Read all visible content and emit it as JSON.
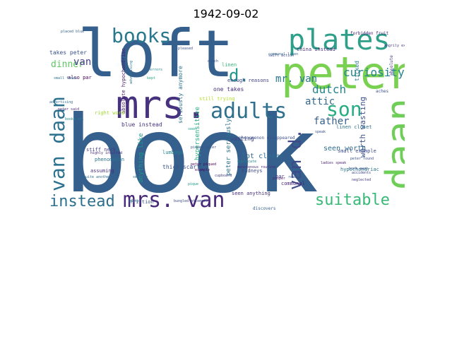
{
  "title": "1942-09-02",
  "words": [
    {
      "text": "book",
      "color": "#35608d",
      "weight": "big",
      "orient": "h"
    },
    {
      "text": "loft",
      "color": "#35608d",
      "weight": "big",
      "orient": "h"
    },
    {
      "text": "mrs.",
      "color": "#46327e",
      "weight": "large",
      "orient": "h"
    },
    {
      "text": "peter",
      "color": "#7ad151",
      "weight": "large",
      "orient": "h"
    },
    {
      "text": "daan",
      "color": "#6ece58",
      "weight": "large",
      "orient": "v"
    },
    {
      "text": "plates",
      "color": "#2e9f88",
      "weight": "medium",
      "orient": "h"
    },
    {
      "text": "adults",
      "color": "#2e6f8e",
      "weight": "medium",
      "orient": "h"
    },
    {
      "text": "books",
      "color": "#2a788e",
      "weight": "medium",
      "orient": "h"
    },
    {
      "text": "mrs. van",
      "color": "#482878",
      "weight": "medium",
      "orient": "h"
    },
    {
      "text": "van daan",
      "color": "#2c718e",
      "weight": "medium",
      "orient": "v"
    },
    {
      "text": "son",
      "color": "#26ad81",
      "weight": "medium",
      "orient": "h"
    },
    {
      "text": "van d.",
      "color": "#3e4989",
      "weight": "medium",
      "orient": "v"
    },
    {
      "text": "suitable",
      "color": "#38b977",
      "weight": "medium",
      "orient": "h"
    },
    {
      "text": "instead",
      "color": "#2d708e",
      "weight": "medium",
      "orient": "h"
    },
    {
      "text": "d.",
      "color": "#1f988b",
      "weight": "small",
      "orient": "h"
    },
    {
      "text": "mr. van",
      "color": "#2a788e",
      "weight": "small",
      "orient": "h"
    },
    {
      "text": "curiosity",
      "color": "#25848e",
      "weight": "small",
      "orient": "h"
    },
    {
      "text": "dinner",
      "color": "#5ec962",
      "weight": "small",
      "orient": "h"
    },
    {
      "text": "van",
      "color": "#433e85",
      "weight": "small",
      "orient": "h"
    },
    {
      "text": "dutch",
      "color": "#25858e",
      "weight": "small",
      "orient": "h"
    },
    {
      "text": "attic",
      "color": "#31688e",
      "weight": "small",
      "orient": "h"
    },
    {
      "text": "father",
      "color": "#355f8d",
      "weight": "small",
      "orient": "h"
    },
    {
      "text": "worth wasting",
      "color": "#3b528b",
      "weight": "tiny",
      "orient": "v"
    },
    {
      "text": "seen worth",
      "color": "#2f6c8e",
      "weight": "tiny",
      "orient": "h"
    },
    {
      "text": "lot closer",
      "color": "#2f6b8e",
      "weight": "tiny",
      "orient": "h"
    },
    {
      "text": "blue instead",
      "color": "#46337f",
      "weight": "tiny",
      "orient": "h"
    },
    {
      "text": "one takes",
      "color": "#472d7b",
      "weight": "tiny",
      "orient": "h"
    },
    {
      "text": "takes peter",
      "color": "#3b518b",
      "weight": "tiny",
      "orient": "h"
    },
    {
      "text": "also par",
      "color": "#440154",
      "weight": "tiny",
      "orient": "h"
    },
    {
      "text": "peter seriously",
      "color": "#2c728e",
      "weight": "tiny",
      "orient": "v"
    },
    {
      "text": "anything like",
      "color": "#1f968b",
      "weight": "tiny",
      "orient": "v"
    },
    {
      "text": "hypersensitive",
      "color": "#2ab07f",
      "weight": "tiny",
      "orient": "v"
    },
    {
      "text": "hypochondriac",
      "color": "#2a788e",
      "weight": "tiny",
      "orient": "h"
    },
    {
      "text": "small example",
      "color": "#3e4a89",
      "weight": "tiny",
      "orient": "h"
    },
    {
      "text": "wasting",
      "color": "#3f4788",
      "weight": "tiny",
      "orient": "h"
    },
    {
      "text": "still trying",
      "color": "#b5de2b",
      "weight": "tiny",
      "orient": "h"
    },
    {
      "text": "seen anything",
      "color": "#46307e",
      "weight": "tiny",
      "orient": "h"
    },
    {
      "text": "thick scarf",
      "color": "#3a538b",
      "weight": "tiny",
      "orient": "h"
    },
    {
      "text": "stiff neck",
      "color": "#433d84",
      "weight": "tiny",
      "orient": "h"
    },
    {
      "text": "phenomenon",
      "color": "#2c738e",
      "weight": "tiny",
      "orient": "h"
    },
    {
      "text": "assuming",
      "color": "#472f7d",
      "weight": "tiny",
      "orient": "h"
    },
    {
      "text": "lumbago",
      "color": "#25838e",
      "weight": "tiny",
      "orient": "h"
    },
    {
      "text": "friction",
      "color": "#3b528b",
      "weight": "tiny",
      "orient": "h"
    },
    {
      "text": "kidneys",
      "color": "#3f4889",
      "weight": "tiny",
      "orient": "h"
    },
    {
      "text": "linen closet",
      "color": "#2c728e",
      "weight": "tiny",
      "orient": "h"
    },
    {
      "text": "seriously anymore",
      "color": "#2c738e",
      "weight": "tiny",
      "orient": "v"
    },
    {
      "text": "enough reasons",
      "color": "#414287",
      "weight": "tiny",
      "orient": "h"
    },
    {
      "text": "china instead",
      "color": "#472c7a",
      "weight": "tiny",
      "orient": "h"
    },
    {
      "text": "absolute hypochondriac",
      "color": "#481b6d",
      "weight": "tiny",
      "orient": "v"
    },
    {
      "text": "right word",
      "color": "#a5db36",
      "weight": "tiny",
      "orient": "h"
    },
    {
      "text": "linen",
      "color": "#35b779",
      "weight": "tiny",
      "orient": "h"
    },
    {
      "text": "communal",
      "color": "#482475",
      "weight": "tiny",
      "orient": "h"
    },
    {
      "text": "par",
      "color": "#463480",
      "weight": "tiny",
      "orient": "h"
    },
    {
      "text": "discovers",
      "color": "#355e8d",
      "weight": "tiny",
      "orient": "h"
    },
    {
      "text": "phenomenon disappeared",
      "color": "#3d4d8a",
      "weight": "tiny",
      "orient": "h"
    },
    {
      "text": "ticked",
      "color": "#2a788e",
      "weight": "tiny",
      "orient": "v"
    },
    {
      "text": "aches",
      "color": "#3b518b",
      "weight": "tiny",
      "orient": "h"
    },
    {
      "text": "absolute",
      "color": "#453781",
      "weight": "tiny",
      "orient": "v"
    },
    {
      "text": "advertising",
      "color": "#2f6c8e",
      "weight": "micro",
      "orient": "h"
    },
    {
      "text": "forbidden fruit",
      "color": "#482677",
      "weight": "micro",
      "orient": "h"
    },
    {
      "text": "angrily exclaimed",
      "color": "#443983",
      "weight": "micro",
      "orient": "h"
    },
    {
      "text": "pleased",
      "color": "#3b518b",
      "weight": "micro",
      "orient": "h"
    },
    {
      "text": "placed blue",
      "color": "#34618d",
      "weight": "micro",
      "orient": "h"
    },
    {
      "text": "quite",
      "color": "#2d708e",
      "weight": "micro",
      "orient": "h"
    },
    {
      "text": "ladies speak",
      "color": "#481f70",
      "weight": "micro",
      "orient": "h"
    },
    {
      "text": "peter found",
      "color": "#3c4f8a",
      "weight": "micro",
      "orient": "h"
    },
    {
      "text": "book away",
      "color": "#3d4e8a",
      "weight": "micro",
      "orient": "h"
    },
    {
      "text": "duplicate",
      "color": "#25848e",
      "weight": "micro",
      "orient": "h"
    },
    {
      "text": "swift action",
      "color": "#3e4989",
      "weight": "micro",
      "orient": "h"
    },
    {
      "text": "proper",
      "color": "#482374",
      "weight": "micro",
      "orient": "h"
    },
    {
      "text": "communal linen",
      "color": "#33638d",
      "weight": "micro",
      "orient": "h"
    },
    {
      "text": "sad mr.",
      "color": "#2a778e",
      "weight": "micro",
      "orient": "h"
    },
    {
      "text": "dutch",
      "color": "#3a548c",
      "weight": "micro",
      "orient": "h"
    },
    {
      "text": "pique",
      "color": "#1e9b8a",
      "weight": "micro",
      "orient": "h"
    },
    {
      "text": "example",
      "color": "#46085c",
      "weight": "micro",
      "orient": "h"
    },
    {
      "text": "monotonous routine",
      "color": "#482979",
      "weight": "micro",
      "orient": "h"
    },
    {
      "text": "piqued peter",
      "color": "#3b528b",
      "weight": "micro",
      "orient": "h"
    },
    {
      "text": "peter piqued",
      "color": "#440154",
      "weight": "micro",
      "orient": "h"
    },
    {
      "text": "cupboard",
      "color": "#433e85",
      "weight": "micro",
      "orient": "h"
    },
    {
      "text": "go looking",
      "color": "#33628d",
      "weight": "micro",
      "orient": "h"
    },
    {
      "text": "quite another",
      "color": "#2f6c8e",
      "weight": "micro",
      "orient": "h"
    },
    {
      "text": "smartly",
      "color": "#2d708e",
      "weight": "micro",
      "orient": "h"
    },
    {
      "text": "reach",
      "color": "#365c8d",
      "weight": "micro",
      "orient": "h"
    },
    {
      "text": "accidents",
      "color": "#3f4788",
      "weight": "micro",
      "orient": "h"
    },
    {
      "text": "neglected",
      "color": "#453882",
      "weight": "micro",
      "orient": "h"
    },
    {
      "text": "kept",
      "color": "#27ad81",
      "weight": "micro",
      "orient": "h"
    },
    {
      "text": "errors",
      "color": "#24868e",
      "weight": "micro",
      "orient": "h"
    },
    {
      "text": "highly insulted",
      "color": "#472a7a",
      "weight": "micro",
      "orient": "h"
    },
    {
      "text": "bungled attempts",
      "color": "#3e4c8a",
      "weight": "micro",
      "orient": "h"
    },
    {
      "text": "books sr.",
      "color": "#238a8d",
      "weight": "micro",
      "orient": "h"
    },
    {
      "text": "small faces",
      "color": "#2c728e",
      "weight": "micro",
      "orient": "h"
    },
    {
      "text": "seen",
      "color": "#20a386",
      "weight": "micro",
      "orient": "h"
    },
    {
      "text": "advertising",
      "color": "#2b748e",
      "weight": "micro",
      "orient": "v"
    },
    {
      "text": "peter said",
      "color": "#472c7a",
      "weight": "micro",
      "orient": "h"
    },
    {
      "text": "speak",
      "color": "#3d4e8a",
      "weight": "micro",
      "orient": "h"
    }
  ]
}
